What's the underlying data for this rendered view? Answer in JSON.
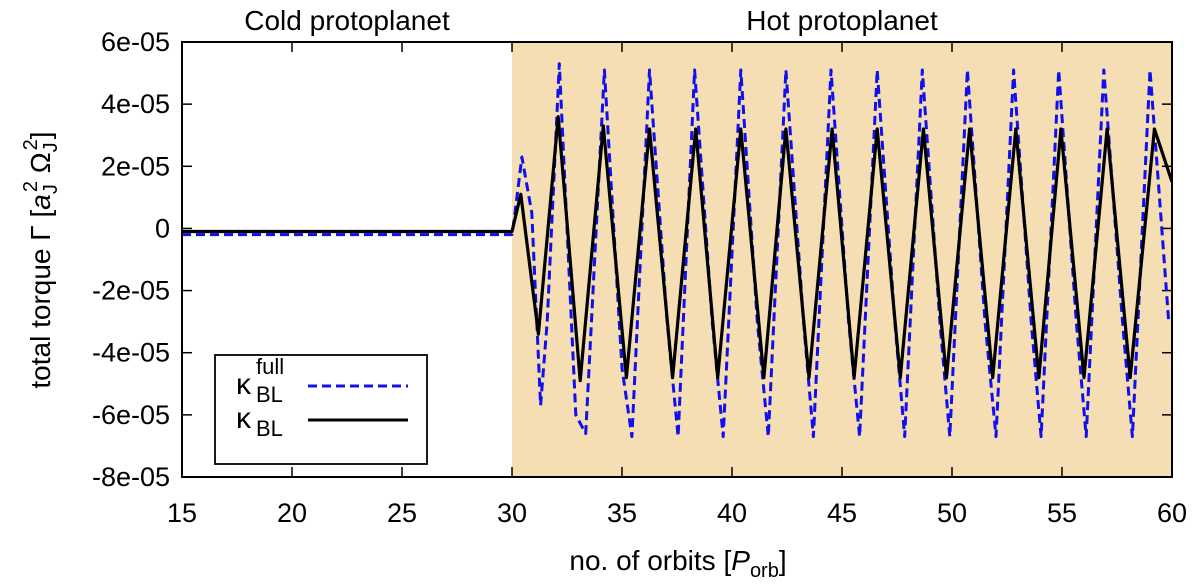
{
  "chart_data": {
    "type": "line",
    "title": "",
    "xlabel": {
      "prefix": "no. of orbits [",
      "symbol": "P",
      "subscript": "orb",
      "suffix": "]"
    },
    "ylabel": {
      "prefix": "total torque Γ [",
      "a": "a",
      "a_sub": "J",
      "a_sup": "2",
      "omega": "Ω",
      "omega_sub": "J",
      "omega_sup": "2",
      "suffix": "]"
    },
    "xlim": [
      15,
      60
    ],
    "ylim": [
      -8e-05,
      6e-05
    ],
    "xticks": [
      15,
      20,
      25,
      30,
      35,
      40,
      45,
      50,
      55,
      60
    ],
    "yticks": [
      -8e-05,
      -6e-05,
      -4e-05,
      -2e-05,
      0,
      2e-05,
      4e-05,
      6e-05
    ],
    "xtick_labels": [
      "15",
      "20",
      "25",
      "30",
      "35",
      "40",
      "45",
      "50",
      "55",
      "60"
    ],
    "ytick_labels": [
      "-8e-05",
      "-6e-05",
      "-4e-05",
      "-2e-05",
      "0",
      "2e-05",
      "4e-05",
      "6e-05"
    ],
    "regions": [
      {
        "label": "Cold protoplanet",
        "x_range": [
          15,
          30
        ],
        "color": "#ffffff"
      },
      {
        "label": "Hot protoplanet",
        "x_range": [
          30,
          60
        ],
        "color": "#f5deb3"
      }
    ],
    "legend": {
      "position": "bottom-left"
    },
    "series": [
      {
        "name": "κ_BL^full",
        "legend_main": "κ",
        "legend_sub": "BL",
        "legend_sup": "full",
        "color": "#1010ee",
        "dash": "dashed",
        "x": [
          15,
          30,
          30.1,
          30.45,
          30.9,
          31.3,
          31.6,
          32.15,
          32.9,
          33.35,
          34.2,
          35.0,
          35.45,
          36.25,
          37.05,
          37.55,
          38.3,
          39.1,
          39.6,
          40.4,
          41.15,
          41.65,
          42.45,
          43.25,
          43.7,
          44.5,
          45.3,
          45.8,
          46.6,
          47.4,
          47.85,
          48.65,
          49.45,
          49.9,
          50.7,
          51.5,
          52.0,
          52.8,
          53.6,
          54.05,
          54.85,
          55.65,
          56.1,
          56.9,
          57.75,
          58.2,
          59.0,
          59.85
        ],
        "y": [
          -2e-06,
          -2e-06,
          3e-06,
          2.3e-05,
          5e-06,
          -5.7e-05,
          -3e-05,
          5.3e-05,
          -6e-05,
          -6.6e-05,
          5.1e-05,
          -4.5e-05,
          -6.7e-05,
          5.1e-05,
          -3e-05,
          -6.7e-05,
          5.1e-05,
          -3e-05,
          -6.7e-05,
          5.1e-05,
          -3e-05,
          -6.7e-05,
          5.1e-05,
          -3e-05,
          -6.7e-05,
          5.1e-05,
          -3e-05,
          -6.7e-05,
          5.1e-05,
          -3e-05,
          -6.7e-05,
          5.1e-05,
          -3e-05,
          -6.7e-05,
          5.1e-05,
          -3e-05,
          -6.7e-05,
          5.1e-05,
          -3e-05,
          -6.7e-05,
          5.1e-05,
          -3e-05,
          -6.7e-05,
          5.1e-05,
          -3e-05,
          -6.7e-05,
          5.1e-05,
          -3e-05
        ]
      },
      {
        "name": "κ_BL",
        "legend_main": "κ",
        "legend_sub": "BL",
        "legend_sup": "",
        "color": "#000000",
        "dash": "solid",
        "x": [
          15,
          30,
          30.4,
          31.2,
          32.1,
          33.1,
          34.15,
          35.2,
          36.25,
          37.3,
          38.35,
          39.35,
          40.4,
          41.45,
          42.45,
          43.5,
          44.55,
          45.55,
          46.6,
          47.65,
          48.7,
          49.75,
          50.8,
          51.85,
          52.9,
          53.95,
          54.95,
          56.0,
          57.05,
          58.1,
          59.2,
          60
        ],
        "y": [
          -1e-06,
          -1e-06,
          1.1e-05,
          -3.4e-05,
          3.6e-05,
          -4.9e-05,
          3.3e-05,
          -4.8e-05,
          3.2e-05,
          -4.8e-05,
          3.2e-05,
          -4.8e-05,
          3.2e-05,
          -4.8e-05,
          3.2e-05,
          -4.8e-05,
          3.2e-05,
          -4.8e-05,
          3.2e-05,
          -4.8e-05,
          3.2e-05,
          -4.8e-05,
          3.2e-05,
          -4.8e-05,
          3.2e-05,
          -4.8e-05,
          3.2e-05,
          -4.8e-05,
          3.2e-05,
          -4.8e-05,
          3.2e-05,
          1.5e-05
        ]
      }
    ]
  }
}
